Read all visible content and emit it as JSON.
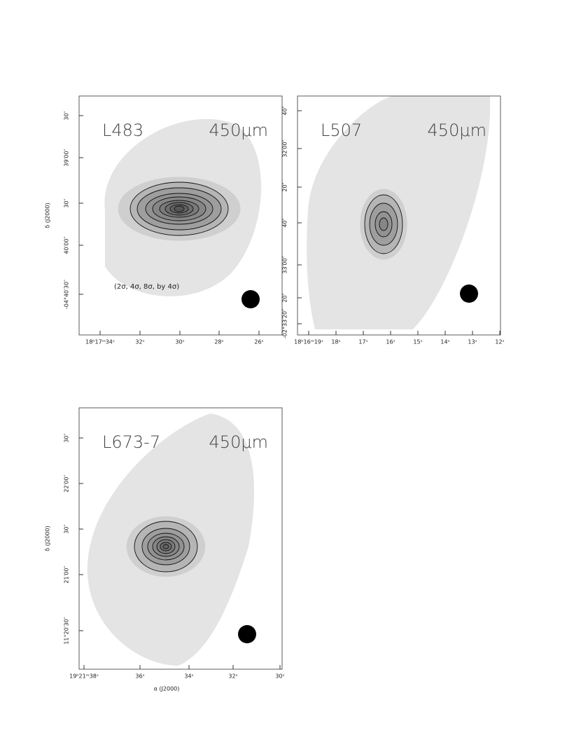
{
  "panels": [
    {
      "source": "L483",
      "band": "450μm",
      "note": "(2σ, 4σ, 8σ, by 4σ)",
      "ylabel": "δ (J2000)",
      "xticks": [
        "18ʰ17ᵐ34ˢ",
        "32ˢ",
        "30ˢ",
        "28ˢ",
        "26ˢ"
      ],
      "yticks": [
        "30″",
        "39′00″",
        "30″",
        "40′00″",
        "-04°40′30″"
      ]
    },
    {
      "source": "L507",
      "band": "450μm",
      "xticks": [
        "18ʰ16ᵐ19ˢ",
        "18ˢ",
        "17ˢ",
        "16ˢ",
        "15ˢ",
        "14ˢ",
        "13ˢ",
        "12ˢ"
      ],
      "yticks": [
        "40″",
        "32′00″",
        "20″",
        "40″",
        "33′00″",
        "20″",
        "-02°33′20″"
      ]
    },
    {
      "source": "L673-7",
      "band": "450μm",
      "ylabel": "δ (J2000)",
      "xlabel": "α (J2000)",
      "xticks": [
        "19ʰ21ᵐ38ˢ",
        "36ˢ",
        "34ˢ",
        "32ˢ",
        "30ˢ"
      ],
      "yticks": [
        "30″",
        "22′00″",
        "30″",
        "21′00″",
        "11°20′30″"
      ]
    }
  ]
}
